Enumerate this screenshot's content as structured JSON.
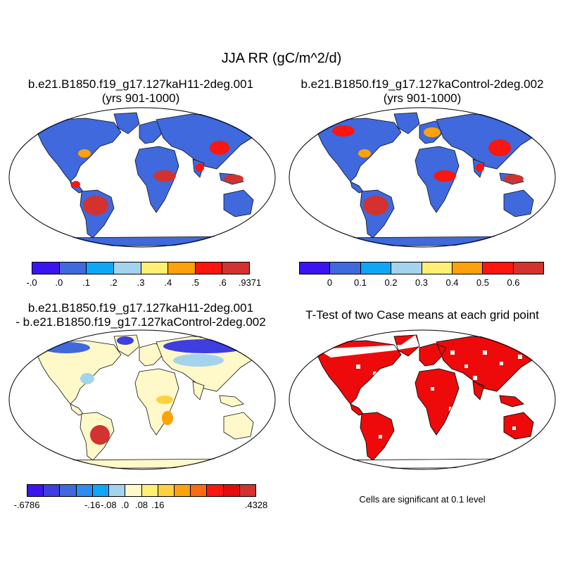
{
  "title": "JJA RR (gC/m^2/d)",
  "panels": {
    "top_left": {
      "title": "b.e21.B1850.f19_g17.127kaH11-2deg.001",
      "subtitle": "(yrs 901-1000)"
    },
    "top_right": {
      "title": "b.e21.B1850.f19_g17.127kaControl-2deg.002",
      "subtitle": "(yrs 901-1000)"
    },
    "bottom_left": {
      "title": "b.e21.B1850.f19_g17.127kaH11-2deg.001",
      "subtitle": "- b.e21.B1850.f19_g17.127kaControl-2deg.002"
    },
    "bottom_right": {
      "title": "T-Test of two Case means at each grid point",
      "note": "Cells are significant at 0.1 level"
    }
  },
  "colorbars": {
    "case1": {
      "colors": [
        "#3c14f0",
        "#3f69dc",
        "#0ea6f7",
        "#a4d3ee",
        "#ffef73",
        "#fea10a",
        "#fd1510",
        "#d3322e"
      ],
      "labels": [
        "-.0",
        ".0",
        ".1",
        ".2",
        ".3",
        ".4",
        ".5",
        ".6",
        ".9371"
      ]
    },
    "case2": {
      "colors": [
        "#3c14f0",
        "#3f69dc",
        "#0ea6f7",
        "#a4d3ee",
        "#ffef73",
        "#fea10a",
        "#fd1510",
        "#d3322e"
      ],
      "labels": [
        "0",
        "0.1",
        "0.2",
        "0.3",
        "0.4",
        "0.5",
        "0.6"
      ]
    },
    "diff": {
      "colors": [
        "#3c14f0",
        "#3f3ee0",
        "#3f69dc",
        "#2d8df0",
        "#0ea6f7",
        "#a4d3ee",
        "#fff8c8",
        "#ffef73",
        "#fed23c",
        "#fea10a",
        "#fd6a10",
        "#fd1510",
        "#e60b0b",
        "#d3322e"
      ],
      "labels": [
        "-.6786",
        "-.16",
        "-.08",
        ".0",
        ".08",
        ".16",
        ".4328"
      ]
    }
  },
  "map_fills": {
    "case1": {
      "land": "#3f69dc",
      "hotspots": [
        {
          "region": "amazon",
          "color": "#d3322e"
        },
        {
          "region": "central-africa",
          "color": "#d3322e"
        },
        {
          "region": "southeast-asia",
          "color": "#d3322e"
        },
        {
          "region": "east-asia",
          "color": "#fd1510"
        },
        {
          "region": "central-america",
          "color": "#fd1510"
        },
        {
          "region": "southeast-us",
          "color": "#fea10a"
        }
      ]
    },
    "case2": {
      "land": "#3f69dc",
      "hotspots": [
        {
          "region": "amazon",
          "color": "#d3322e"
        },
        {
          "region": "central-africa",
          "color": "#fd1510"
        },
        {
          "region": "southeast-asia",
          "color": "#d3322e"
        },
        {
          "region": "east-asia",
          "color": "#fd1510"
        },
        {
          "region": "europe",
          "color": "#fea10a"
        },
        {
          "region": "boreal-canada",
          "color": "#fd1510"
        },
        {
          "region": "southeast-us",
          "color": "#fea10a"
        }
      ]
    },
    "diff": {
      "land": "#fff8c8",
      "hotspots": [
        {
          "region": "north-siberia",
          "color": "#3f3ee0"
        },
        {
          "region": "north-canada",
          "color": "#3f69dc"
        },
        {
          "region": "amazon-south",
          "color": "#d3322e"
        },
        {
          "region": "east-us",
          "color": "#a4d3ee"
        },
        {
          "region": "north-asia",
          "color": "#a4d3ee"
        },
        {
          "region": "central-africa",
          "color": "#fed23c"
        }
      ]
    },
    "ttest": {
      "land": "#ee0a0a"
    }
  }
}
